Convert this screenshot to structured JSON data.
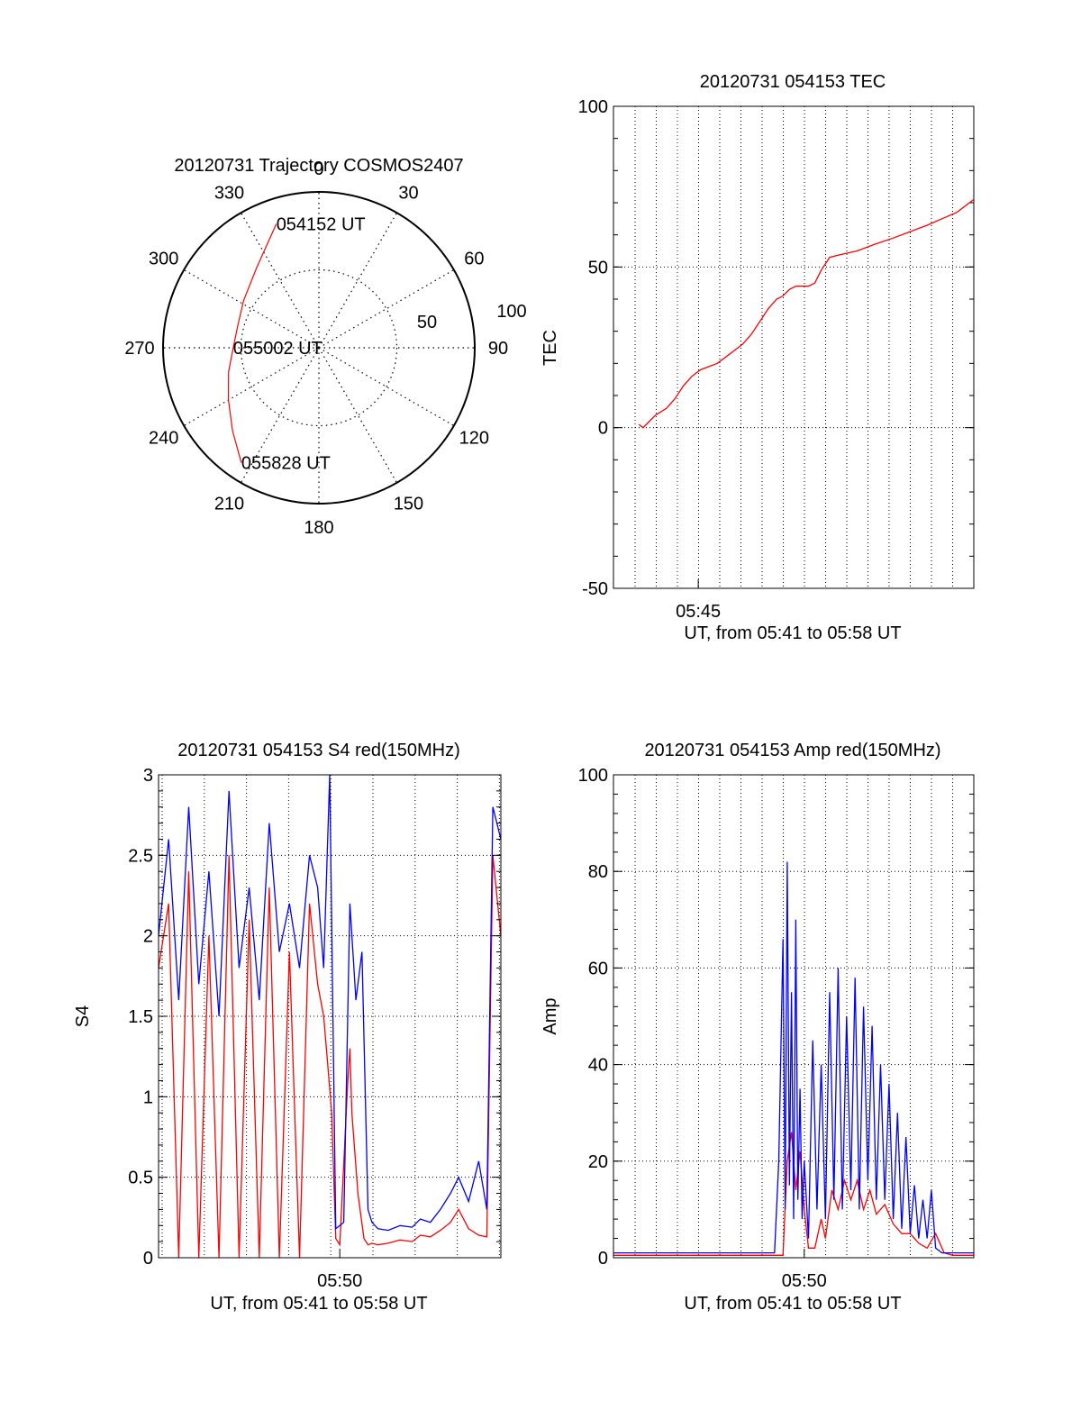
{
  "chart_data": [
    {
      "type": "polar",
      "title": "20120731 Trajectory COSMOS2407",
      "azimuth_labels": [
        "0",
        "30",
        "60",
        "90",
        "120",
        "150",
        "180",
        "210",
        "240",
        "270",
        "300",
        "330"
      ],
      "radius_labels": [
        "50",
        "100"
      ],
      "r_max": 100,
      "grid": true,
      "trajectory": {
        "color": "#ff0000",
        "points": [
          {
            "az": 341,
            "r": 84
          },
          {
            "az": 322,
            "r": 65
          },
          {
            "az": 302,
            "r": 57
          },
          {
            "az": 286,
            "r": 54
          },
          {
            "az": 270,
            "r": 55
          },
          {
            "az": 255,
            "r": 60
          },
          {
            "az": 240,
            "r": 67
          },
          {
            "az": 226,
            "r": 77
          },
          {
            "az": 214,
            "r": 89
          }
        ]
      },
      "annotations": [
        {
          "text": "054152 UT",
          "az": 341,
          "r": 84
        },
        {
          "text": "055002 UT",
          "az": 270,
          "r": 55
        },
        {
          "text": "055828 UT",
          "az": 214,
          "r": 89
        }
      ]
    },
    {
      "type": "line",
      "title": "20120731 054153 TEC",
      "xlabel": "UT, from 05:41 to 05:58 UT",
      "ylabel": "TEC",
      "xlim": [
        0,
        17
      ],
      "ylim": [
        -50,
        100
      ],
      "yticks": [
        "-50",
        "0",
        "50",
        "100"
      ],
      "xticks": [
        {
          "x": 4,
          "label": "05:45"
        }
      ],
      "grid": true,
      "series": [
        {
          "color": "#ff0000",
          "x": [
            1.2,
            1.4,
            1.7,
            2.0,
            2.5,
            2.9,
            3.3,
            3.7,
            4.1,
            4.5,
            4.9,
            5.3,
            5.7,
            6.1,
            6.5,
            6.9,
            7.3,
            7.7,
            8.0,
            8.3,
            8.6,
            8.9,
            9.2,
            9.5,
            9.8,
            10.2,
            10.8,
            11.5,
            12.3,
            13.2,
            14.0,
            14.8,
            15.5,
            16.2,
            17.0
          ],
          "y": [
            1,
            0,
            2,
            4,
            6,
            9,
            13,
            16,
            18,
            19,
            20,
            22,
            24,
            26,
            29,
            33,
            37,
            40,
            41,
            43,
            44,
            44,
            44,
            45,
            49,
            53,
            54,
            55,
            57,
            59,
            61,
            63,
            65,
            67,
            71
          ]
        }
      ]
    },
    {
      "type": "line",
      "title": "20120731 054153 S4 red(150MHz)",
      "xlabel": "UT, from 05:41 to 05:58 UT",
      "ylabel": "S4",
      "xlim": [
        0,
        17
      ],
      "ylim": [
        0,
        3
      ],
      "yticks": [
        "0",
        "0.5",
        "1",
        "1.5",
        "2",
        "2.5",
        "3"
      ],
      "xticks": [
        {
          "x": 9,
          "label": "05:50"
        }
      ],
      "grid": true,
      "series": [
        {
          "color": "#ff0000",
          "x": [
            0,
            0.5,
            1,
            1.5,
            2,
            2.5,
            3,
            3.5,
            4,
            4.5,
            5,
            5.5,
            6,
            6.5,
            7,
            7.5,
            7.9,
            8.2,
            8.4,
            8.6,
            8.8,
            9,
            9.4,
            9.5,
            9.6,
            9.9,
            10.2,
            10.4,
            10.6,
            10.9,
            11.4,
            12,
            12.6,
            13,
            13.5,
            14,
            14.5,
            14.9,
            15.4,
            15.9,
            16.3,
            16.6,
            17
          ],
          "y": [
            1.8,
            2.2,
            0,
            2.4,
            0,
            2.0,
            0,
            2.5,
            0,
            2.1,
            0,
            2.3,
            0,
            1.9,
            0,
            2.2,
            1.7,
            1.5,
            1.2,
            0.9,
            0.12,
            0.08,
            1.1,
            1.3,
            0.9,
            0.4,
            0.12,
            0.08,
            0.09,
            0.08,
            0.09,
            0.11,
            0.1,
            0.14,
            0.13,
            0.17,
            0.22,
            0.3,
            0.18,
            0.14,
            0.13,
            2.5,
            2.0
          ]
        },
        {
          "color": "#0000ff",
          "x": [
            0,
            0.5,
            1,
            1.5,
            2,
            2.5,
            3,
            3.5,
            4,
            4.5,
            5,
            5.5,
            6,
            6.5,
            7,
            7.5,
            7.9,
            8.2,
            8.5,
            8.8,
            9,
            9.2,
            9.5,
            9.8,
            10.1,
            10.4,
            10.6,
            10.9,
            11.4,
            12,
            12.6,
            13,
            13.5,
            14,
            14.5,
            14.9,
            15.4,
            15.9,
            16.3,
            16.6,
            17
          ],
          "y": [
            2.0,
            2.6,
            1.6,
            2.8,
            1.7,
            2.4,
            1.5,
            2.9,
            1.8,
            2.3,
            1.6,
            2.7,
            1.9,
            2.2,
            1.8,
            2.5,
            2.3,
            1.8,
            3.0,
            0.18,
            0.2,
            0.22,
            2.2,
            1.6,
            1.9,
            0.3,
            0.22,
            0.18,
            0.17,
            0.2,
            0.19,
            0.24,
            0.22,
            0.3,
            0.4,
            0.5,
            0.35,
            0.6,
            0.3,
            2.8,
            2.6
          ]
        }
      ]
    },
    {
      "type": "line",
      "title": "20120731 054153 Amp red(150MHz)",
      "xlabel": "UT, from 05:41 to 05:58 UT",
      "ylabel": "Amp",
      "xlim": [
        0,
        17
      ],
      "ylim": [
        0,
        100
      ],
      "yticks": [
        "0",
        "20",
        "40",
        "60",
        "80",
        "100"
      ],
      "xticks": [
        {
          "x": 9,
          "label": "05:50"
        }
      ],
      "grid": true,
      "series": [
        {
          "color": "#ff0000",
          "x": [
            0,
            3,
            6,
            7.6,
            8.0,
            8.2,
            8.4,
            8.6,
            8.8,
            9.0,
            9.2,
            9.5,
            9.8,
            10.0,
            10.3,
            10.6,
            10.9,
            11.2,
            11.5,
            11.8,
            12.1,
            12.4,
            12.8,
            13.2,
            13.6,
            14.0,
            14.4,
            14.8,
            15.2,
            15.6,
            16.0,
            17
          ],
          "y": [
            0.5,
            0.5,
            0.5,
            0.5,
            0.5,
            20,
            26,
            14,
            22,
            10,
            2,
            2,
            8,
            4,
            14,
            10,
            16,
            12,
            16,
            10,
            14,
            9,
            11,
            7,
            5,
            5,
            3,
            2,
            5,
            1,
            0.5,
            0.5
          ]
        },
        {
          "color": "#0000ff",
          "x": [
            0,
            2,
            4,
            6,
            7.6,
            7.8,
            8.0,
            8.1,
            8.2,
            8.3,
            8.4,
            8.5,
            8.6,
            8.7,
            8.8,
            8.9,
            9.0,
            9.2,
            9.4,
            9.6,
            9.8,
            10.0,
            10.2,
            10.4,
            10.6,
            10.8,
            11.0,
            11.2,
            11.4,
            11.6,
            11.8,
            12.0,
            12.2,
            12.4,
            12.6,
            12.8,
            13.0,
            13.2,
            13.4,
            13.6,
            13.8,
            14.0,
            14.2,
            14.4,
            14.6,
            14.8,
            15.0,
            15.2,
            15.5,
            16,
            17
          ],
          "y": [
            1,
            1,
            1,
            1,
            1,
            20,
            66,
            10,
            82,
            15,
            55,
            8,
            70,
            12,
            35,
            8,
            20,
            4,
            45,
            10,
            40,
            8,
            55,
            12,
            60,
            10,
            50,
            14,
            58,
            10,
            52,
            16,
            48,
            12,
            40,
            12,
            36,
            8,
            30,
            6,
            25,
            5,
            15,
            4,
            12,
            4,
            14,
            2,
            1,
            1,
            1
          ]
        }
      ]
    }
  ]
}
